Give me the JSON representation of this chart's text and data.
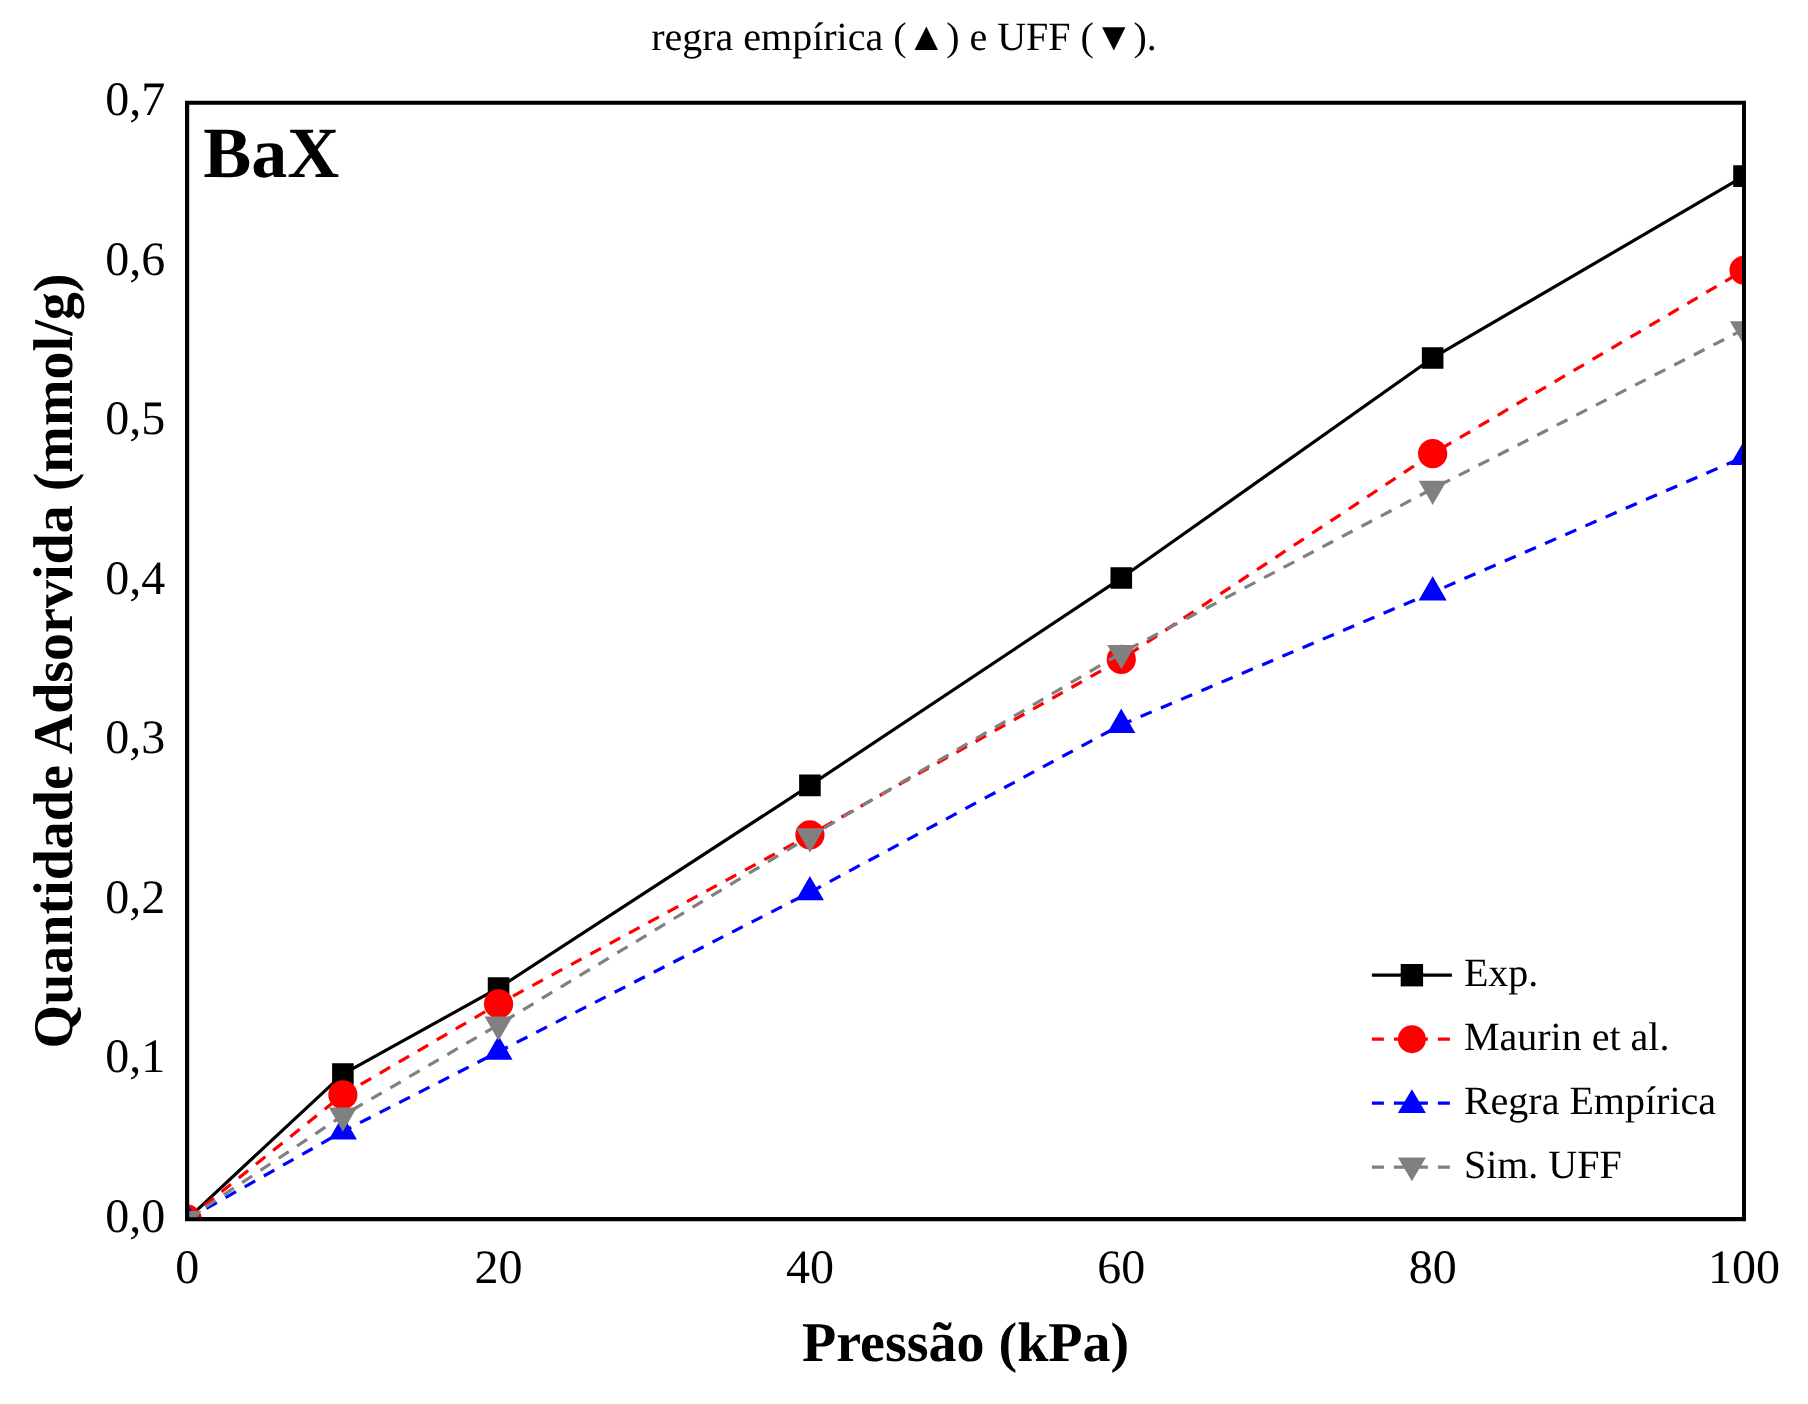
{
  "chart_data": {
    "type": "line",
    "xlabel": "Pressão (kPa)",
    "ylabel": "Quantidade Adsorvida (mmol/g)",
    "annotations": [
      "regra empírica (▲) e UFF (▼).",
      "BaX"
    ],
    "x": [
      0,
      10,
      20,
      40,
      60,
      80,
      100
    ],
    "series": [
      {
        "name": "Exp.",
        "color": "#000000",
        "marker": "square",
        "line_style": "solid",
        "values": [
          0,
          0.091,
          0.145,
          0.272,
          0.402,
          0.54,
          0.654
        ]
      },
      {
        "name": "Maurin et al.",
        "color": "#ff0000",
        "marker": "circle",
        "line_style": "dashed",
        "values": [
          0,
          0.078,
          0.135,
          0.241,
          0.351,
          0.48,
          0.595
        ]
      },
      {
        "name": "Regra Empírica",
        "color": "#0000ff",
        "marker": "triangle",
        "line_style": "dashed",
        "values": [
          0,
          0.055,
          0.105,
          0.205,
          0.31,
          0.393,
          0.478
        ]
      },
      {
        "name": "Sim. UFF",
        "color": "#808080",
        "marker": "triangle-down",
        "line_style": "dashed",
        "values": [
          0,
          0.065,
          0.122,
          0.24,
          0.355,
          0.458,
          0.558
        ]
      }
    ],
    "xlim": [
      0,
      100
    ],
    "xticks": [
      {
        "value": 0,
        "label": "0"
      },
      {
        "value": 20,
        "label": "20"
      },
      {
        "value": 40,
        "label": "40"
      },
      {
        "value": 60,
        "label": "60"
      },
      {
        "value": 80,
        "label": "80"
      },
      {
        "value": 100,
        "label": "100"
      }
    ],
    "ylim": [
      0,
      0.7
    ],
    "yticks": [
      {
        "value": 0,
        "label": "0,0"
      },
      {
        "value": 0.1,
        "label": "0,1"
      },
      {
        "value": 0.2,
        "label": "0,2"
      },
      {
        "value": 0.3,
        "label": "0,3"
      },
      {
        "value": 0.4,
        "label": "0,4"
      },
      {
        "value": 0.5,
        "label": "0,5"
      },
      {
        "value": 0.6,
        "label": "0,6"
      },
      {
        "value": 0.7,
        "label": "0,7"
      }
    ],
    "grid": false,
    "legend": "bottom right"
  }
}
